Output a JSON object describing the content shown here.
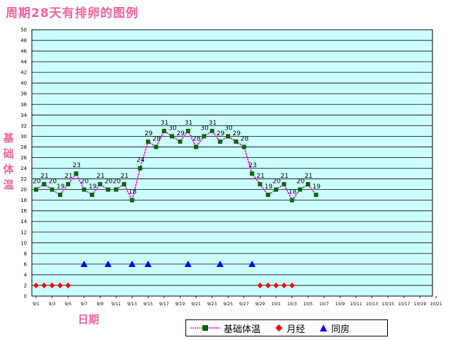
{
  "title": "周期28天有排卵的图例",
  "ylabel_chars": [
    "基",
    "础",
    "体",
    "温"
  ],
  "xlabel": "日期",
  "colors": {
    "plot_bg": "#ccffff",
    "line": "#ff00ff",
    "marker": "#006600",
    "period": "#ff0000",
    "intercourse": "#0000ff",
    "title": "#f2629a"
  },
  "legend": {
    "temp": "基础体温",
    "period": "月经",
    "intercourse": "同房"
  },
  "chart_data": {
    "type": "line",
    "ylim": [
      0,
      50
    ],
    "ytick_step": 2,
    "grid": true,
    "legend_position": "bottom-right",
    "x_labels": [
      "9/1",
      "9/3",
      "9/5",
      "9/7",
      "9/9",
      "9/11",
      "9/13",
      "9/15",
      "9/17",
      "9/19",
      "9/21",
      "9/23",
      "9/25",
      "9/27",
      "9/29",
      "10/1",
      "10/3",
      "10/5",
      "10/7",
      "10/9",
      "10/11",
      "10/13",
      "10/15",
      "10/17",
      "10/19",
      "10/21"
    ],
    "series": [
      {
        "name": "基础体温",
        "x": [
          "9/1",
          "9/2",
          "9/3",
          "9/4",
          "9/5",
          "9/6",
          "9/7",
          "9/8",
          "9/9",
          "9/10",
          "9/11",
          "9/12",
          "9/13",
          "9/14",
          "9/15",
          "9/16",
          "9/17",
          "9/18",
          "9/19",
          "9/20",
          "9/21",
          "9/22",
          "9/23",
          "9/24",
          "9/25",
          "9/26",
          "9/27",
          "9/28",
          "9/29",
          "9/30",
          "10/1",
          "10/2",
          "10/3",
          "10/4",
          "10/5",
          "10/6"
        ],
        "values": [
          20,
          21,
          20,
          19,
          21,
          23,
          20,
          19,
          21,
          20,
          20,
          21,
          18,
          24,
          29,
          28,
          31,
          30,
          29,
          31,
          28,
          30,
          31,
          29,
          30,
          29,
          28,
          23,
          21,
          19,
          20,
          21,
          18,
          20,
          21,
          19
        ]
      },
      {
        "name": "月经",
        "x": [
          "9/1",
          "9/2",
          "9/3",
          "9/4",
          "9/5",
          "9/29",
          "9/30",
          "10/1",
          "10/2",
          "10/3"
        ],
        "values": [
          2,
          2,
          2,
          2,
          2,
          2,
          2,
          2,
          2,
          2
        ]
      },
      {
        "name": "同房",
        "x": [
          "9/7",
          "9/10",
          "9/13",
          "9/15",
          "9/20",
          "9/24",
          "9/28"
        ],
        "values": [
          6,
          6,
          6,
          6,
          6,
          6,
          6
        ]
      }
    ]
  }
}
